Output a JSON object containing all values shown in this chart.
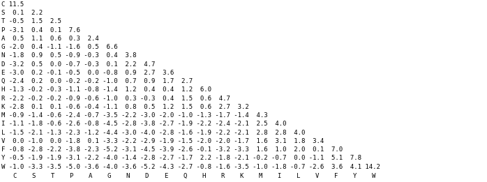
{
  "amino_acids": [
    "C",
    "S",
    "T",
    "P",
    "A",
    "G",
    "N",
    "D",
    "E",
    "Q",
    "H",
    "R",
    "K",
    "M",
    "I",
    "L",
    "V",
    "F",
    "Y",
    "W"
  ],
  "col_labels": [
    "C",
    "S",
    "T",
    "P",
    "A",
    "G",
    "N",
    "D",
    "E",
    "Q",
    "H",
    "R",
    "K",
    "M",
    "I",
    "L",
    "V",
    "F",
    "Y",
    "W"
  ],
  "matrix": [
    [
      11.5
    ],
    [
      0.1,
      2.2
    ],
    [
      -0.5,
      1.5,
      2.5
    ],
    [
      -3.1,
      0.4,
      0.1,
      7.6
    ],
    [
      0.5,
      1.1,
      0.6,
      0.3,
      2.4
    ],
    [
      -2.0,
      0.4,
      -1.1,
      -1.6,
      0.5,
      6.6
    ],
    [
      -1.8,
      0.9,
      0.5,
      -0.9,
      -0.3,
      0.4,
      3.8
    ],
    [
      -3.2,
      0.5,
      0.0,
      -0.7,
      -0.3,
      0.1,
      2.2,
      4.7
    ],
    [
      -3.0,
      0.2,
      -0.1,
      -0.5,
      0.0,
      -0.8,
      0.9,
      2.7,
      3.6
    ],
    [
      -2.4,
      0.2,
      0.0,
      -0.2,
      -0.2,
      -1.0,
      0.7,
      0.9,
      1.7,
      2.7
    ],
    [
      -1.3,
      -0.2,
      -0.3,
      -1.1,
      -0.8,
      -1.4,
      1.2,
      0.4,
      0.4,
      1.2,
      6.0
    ],
    [
      -2.2,
      -0.2,
      -0.2,
      -0.9,
      -0.6,
      -1.0,
      0.3,
      -0.3,
      0.4,
      1.5,
      0.6,
      4.7
    ],
    [
      -2.8,
      0.1,
      0.1,
      -0.6,
      -0.4,
      -1.1,
      0.8,
      0.5,
      1.2,
      1.5,
      0.6,
      2.7,
      3.2
    ],
    [
      -0.9,
      -1.4,
      -0.6,
      -2.4,
      -0.7,
      -3.5,
      -2.2,
      -3.0,
      -2.0,
      -1.0,
      -1.3,
      -1.7,
      -1.4,
      4.3
    ],
    [
      -1.1,
      -1.8,
      -0.6,
      -2.6,
      -0.8,
      -4.5,
      -2.8,
      -3.8,
      -2.7,
      -1.9,
      -2.2,
      -2.4,
      -2.1,
      2.5,
      4.0
    ],
    [
      -1.5,
      -2.1,
      -1.3,
      -2.3,
      -1.2,
      -4.4,
      -3.0,
      -4.0,
      -2.8,
      -1.6,
      -1.9,
      -2.2,
      -2.1,
      2.8,
      2.8,
      4.0
    ],
    [
      0.0,
      -1.0,
      0.0,
      -1.8,
      0.1,
      -3.3,
      -2.2,
      -2.9,
      -1.9,
      -1.5,
      -2.0,
      -2.0,
      -1.7,
      1.6,
      3.1,
      1.8,
      3.4
    ],
    [
      -0.8,
      -2.8,
      -2.2,
      -3.8,
      -2.3,
      -5.2,
      -3.1,
      -4.5,
      -3.9,
      -2.6,
      -0.1,
      -3.2,
      -3.3,
      1.6,
      1.0,
      2.0,
      0.1,
      7.0
    ],
    [
      -0.5,
      -1.9,
      -1.9,
      -3.1,
      -2.2,
      -4.0,
      -1.4,
      -2.8,
      -2.7,
      -1.7,
      2.2,
      -1.8,
      -2.1,
      -0.2,
      -0.7,
      0.0,
      -1.1,
      5.1,
      7.8
    ],
    [
      -1.0,
      -3.3,
      -3.5,
      -5.0,
      -3.6,
      -4.0,
      -3.6,
      -5.2,
      -4.3,
      -2.7,
      -0.8,
      -1.6,
      -3.5,
      -1.0,
      -1.8,
      -0.7,
      -2.6,
      3.6,
      4.1,
      14.2
    ]
  ],
  "font_family": "Courier New",
  "font_size": 6.5,
  "text_color": "#000000",
  "background_color": "#ffffff",
  "fig_width": 6.98,
  "fig_height": 2.61,
  "dpi": 100
}
